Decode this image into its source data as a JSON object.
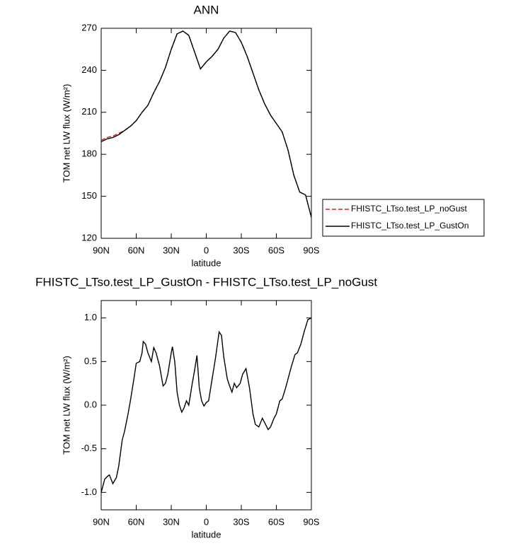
{
  "chart_data": [
    {
      "type": "line",
      "title": "ANN",
      "x_label": "latitude",
      "y_label": "TOM net LW flux (W/m²)",
      "x": [
        90,
        85,
        80,
        75,
        70,
        65,
        60,
        55,
        50,
        45,
        40,
        35,
        30,
        25,
        20,
        15,
        10,
        5,
        0,
        -5,
        -10,
        -15,
        -20,
        -25,
        -30,
        -35,
        -40,
        -45,
        -50,
        -55,
        -60,
        -65,
        -70,
        -75,
        -80,
        -85,
        -90
      ],
      "series": [
        {
          "name": "FHISTC_LTso.test_LP_noGust",
          "color": "#e41a1c",
          "linestyle": "dashed",
          "values": [
            190,
            192,
            193,
            195,
            197,
            200,
            204,
            210,
            215,
            224,
            232,
            242,
            255,
            266,
            268,
            265,
            253,
            241,
            246,
            250,
            255,
            263,
            268,
            267,
            260,
            250,
            238,
            226,
            216,
            208,
            202,
            196,
            183,
            165,
            153,
            151,
            135
          ]
        },
        {
          "name": "FHISTC_LTso.test_LP_GustOn",
          "color": "#000000",
          "linestyle": "solid",
          "values": [
            189,
            191,
            192,
            194,
            197,
            200,
            204,
            210,
            215,
            224,
            232,
            242,
            255,
            266,
            268,
            265,
            253,
            241,
            246,
            250,
            255,
            263,
            268,
            267,
            260,
            250,
            238,
            226,
            216,
            208,
            202,
            196,
            183,
            165,
            153,
            151,
            135
          ]
        }
      ],
      "xlim": [
        90,
        -90
      ],
      "xticks": [
        {
          "value": 90,
          "label": "90N"
        },
        {
          "value": 60,
          "label": "60N"
        },
        {
          "value": 30,
          "label": "30N"
        },
        0,
        {
          "value": -30,
          "label": "30S"
        },
        {
          "value": -60,
          "label": "60S"
        },
        {
          "value": -90,
          "label": "90S"
        }
      ],
      "ylim": [
        120,
        270
      ],
      "yticks": [
        120,
        150,
        180,
        210,
        240,
        270
      ],
      "legend": "right"
    },
    {
      "type": "line",
      "title": "FHISTC_LTso.test_LP_GustOn - FHISTC_LTso.test_LP_noGust",
      "x_label": "latitude",
      "y_label": "TOM net LW flux (W/m²)",
      "x": [
        90,
        87,
        85,
        83,
        80,
        77,
        75,
        72,
        70,
        67,
        65,
        62,
        60,
        57,
        55,
        54,
        52,
        50,
        47,
        45,
        43,
        40,
        37,
        35,
        33,
        30,
        29,
        27,
        25,
        23,
        21,
        19,
        17,
        15,
        12,
        10,
        8,
        6,
        4,
        2,
        0,
        -2,
        -5,
        -8,
        -11,
        -13,
        -15,
        -18,
        -20,
        -22,
        -24,
        -26,
        -29,
        -31,
        -34,
        -37,
        -40,
        -42,
        -45,
        -48,
        -50,
        -53,
        -55,
        -58,
        -60,
        -63,
        -65,
        -68,
        -70,
        -73,
        -76,
        -78,
        -81,
        -84,
        -87,
        -90
      ],
      "values": [
        -1.0,
        -0.85,
        -0.82,
        -0.8,
        -0.9,
        -0.83,
        -0.7,
        -0.4,
        -0.3,
        -0.1,
        0.05,
        0.3,
        0.48,
        0.5,
        0.6,
        0.73,
        0.7,
        0.6,
        0.5,
        0.66,
        0.6,
        0.45,
        0.22,
        0.25,
        0.35,
        0.6,
        0.67,
        0.5,
        0.15,
        0.0,
        -0.08,
        -0.03,
        0.05,
        0.0,
        0.25,
        0.4,
        0.57,
        0.2,
        0.05,
        -0.01,
        0.03,
        0.05,
        0.3,
        0.55,
        0.84,
        0.8,
        0.55,
        0.3,
        0.22,
        0.15,
        0.25,
        0.2,
        0.25,
        0.35,
        0.42,
        0.2,
        -0.1,
        -0.22,
        -0.25,
        -0.15,
        -0.2,
        -0.28,
        -0.25,
        -0.15,
        -0.1,
        0.05,
        0.07,
        0.2,
        0.3,
        0.45,
        0.58,
        0.6,
        0.7,
        0.85,
        0.98,
        1.0
      ],
      "color": "#000000",
      "xlim": [
        90,
        -90
      ],
      "xticks": [
        {
          "value": 90,
          "label": "90N"
        },
        {
          "value": 60,
          "label": "60N"
        },
        {
          "value": 30,
          "label": "30N"
        },
        0,
        {
          "value": -30,
          "label": "30S"
        },
        {
          "value": -60,
          "label": "60S"
        },
        {
          "value": -90,
          "label": "90S"
        }
      ],
      "ylim": [
        -1.2,
        1.2
      ],
      "yticks": [
        {
          "value": -1,
          "label": "-1.0"
        },
        {
          "value": -0.5,
          "label": "-0.5"
        },
        {
          "value": 0,
          "label": "0.0"
        },
        {
          "value": 0.5,
          "label": "0.5"
        },
        {
          "value": 1,
          "label": "1.0"
        }
      ]
    }
  ]
}
